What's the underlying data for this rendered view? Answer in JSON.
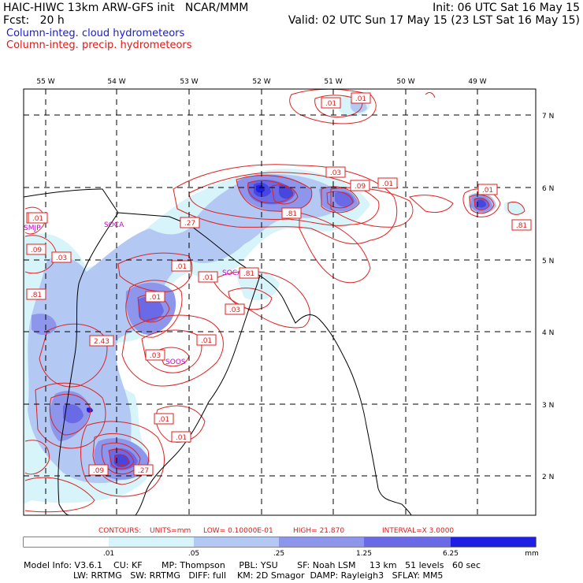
{
  "header": {
    "line1_left": "HAIC-HIWC 13km ARW-GFS init   NCAR/MMM",
    "line1_right": "Init: 06 UTC Sat 16 May 15",
    "line2_left": "Fcst:   20 h",
    "line2_right": "Valid: 02 UTC Sun 17 May 15 (23 LST Sat 16 May 15)",
    "field_cloud": "Column-integ. cloud hydrometeors",
    "field_precip": "Column-integ. precip. hydrometeors"
  },
  "colors": {
    "cloud_text": "#1a1acc",
    "precip_text": "#dd1a1a",
    "contour": "#dd2222",
    "station": "#cc00cc",
    "shade_1": "#d6f4fa",
    "shade_2": "#b4c8f4",
    "shade_3": "#8e96ec",
    "shade_4": "#6a6ae6",
    "shade_5": "#4646e0",
    "shade_6": "#1e1ee4"
  },
  "map": {
    "lon_labels": [
      "55 W",
      "54 W",
      "53 W",
      "52 W",
      "51 W",
      "50 W",
      "49 W"
    ],
    "lat_labels": [
      "7 N",
      "6 N",
      "5 N",
      "4 N",
      "3 N",
      "2 N"
    ],
    "stations": [
      "SMJP",
      "SOCA",
      "SOCA",
      "SOOS",
      "SOCA",
      "SOOR"
    ],
    "contour_labels": [
      ".01",
      ".01",
      ".03",
      ".09",
      ".01",
      ".01",
      ".81",
      ".27",
      ".01",
      ".01",
      ".03",
      ".01",
      ".27",
      ".09",
      ".03",
      ".81",
      ".01",
      ".81",
      "2.43",
      ".03",
      ".01",
      ".01",
      ".09",
      ".27",
      ".81",
      ".01"
    ]
  },
  "contours_line": {
    "contours": "CONTOURS:",
    "units": "UNITS=mm",
    "low": "LOW= 0.10000E-01",
    "high": "HIGH=  21.870",
    "interval": "INTERVAL=X  3.0000"
  },
  "colorbar": {
    "labels": [
      ".01",
      ".05",
      ".25",
      "1.25",
      "6.25"
    ],
    "units": "mm"
  },
  "model_info": {
    "line1": "Model Info: V3.6.1    CU: KF       MP: Thompson     PBL: YSU       SF: Noah LSM     13 km   51 levels   60 sec",
    "line2": "                  LW: RRTMG   SW: RRTMG   DIFF: full    KM: 2D Smagor  DAMP: Rayleigh3   SFLAY: MM5"
  }
}
